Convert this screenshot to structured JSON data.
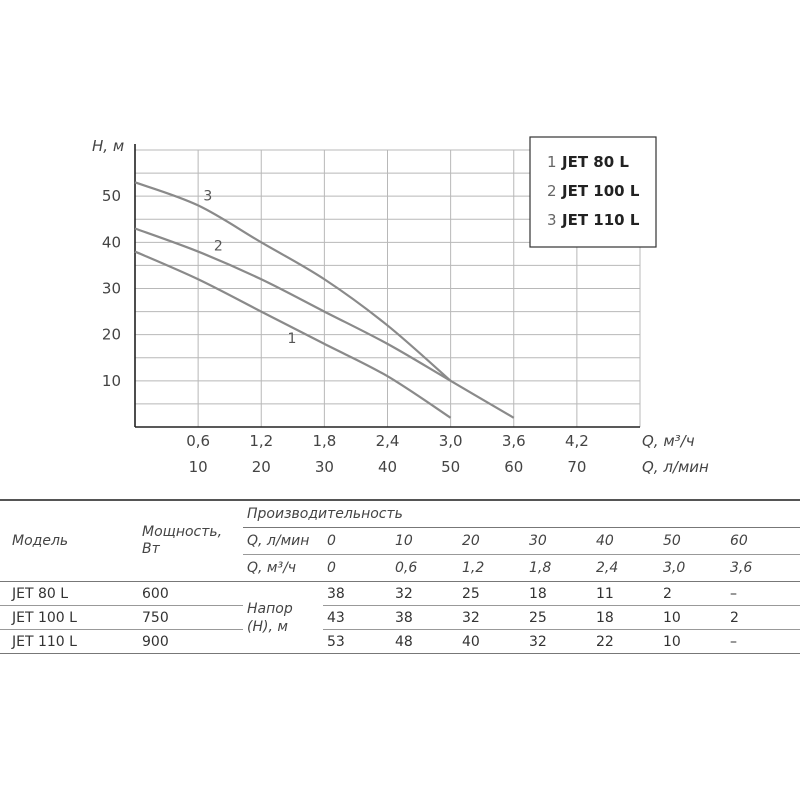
{
  "chart_data": {
    "type": "line",
    "xlabel": "Q, м³/ч",
    "xlabel2": "Q, л/мин",
    "ylabel": "H, м",
    "x_ticks_m3h": [
      "0,6",
      "1,2",
      "1,8",
      "2,4",
      "3,0",
      "3,6",
      "4,2"
    ],
    "x_ticks_lmin": [
      "10",
      "20",
      "30",
      "40",
      "50",
      "60",
      "70"
    ],
    "y_ticks": [
      "10",
      "20",
      "30",
      "40",
      "50"
    ],
    "xlim": [
      0,
      4.8
    ],
    "ylim": [
      0,
      60
    ],
    "grid": true,
    "legend_position": "top-right",
    "legend": [
      {
        "num": "1",
        "name": "JET 80 L"
      },
      {
        "num": "2",
        "name": "JET 100 L"
      },
      {
        "num": "3",
        "name": "JET 110 L"
      }
    ],
    "series": [
      {
        "name": "1",
        "x": [
          0,
          0.6,
          1.2,
          1.8,
          2.4,
          3.0
        ],
        "y": [
          38,
          32,
          25,
          18,
          11,
          2
        ],
        "color": "#8a8a8a"
      },
      {
        "name": "2",
        "x": [
          0,
          0.6,
          1.2,
          1.8,
          2.4,
          3.0,
          3.6
        ],
        "y": [
          43,
          38,
          32,
          25,
          18,
          10,
          2
        ],
        "color": "#8a8a8a"
      },
      {
        "name": "3",
        "x": [
          0,
          0.6,
          1.2,
          1.8,
          2.4,
          3.0
        ],
        "y": [
          53,
          48,
          40,
          32,
          22,
          10
        ],
        "color": "#8a8a8a"
      }
    ]
  },
  "table": {
    "model_header": "Модель",
    "power_header": "Мощность, Вт",
    "productivity_header": "Производительность",
    "q_lmin_label": "Q, л/мин",
    "q_m3h_label": "Q, м³/ч",
    "q_lmin_values": [
      "0",
      "10",
      "20",
      "30",
      "40",
      "50",
      "60"
    ],
    "q_m3h_values": [
      "0",
      "0,6",
      "1,2",
      "1,8",
      "2,4",
      "3,0",
      "3,6"
    ],
    "head_label": "Напор (Н), м",
    "rows": [
      {
        "model": "JET 80 L",
        "power": "600",
        "values": [
          "38",
          "32",
          "25",
          "18",
          "11",
          "2",
          "–"
        ]
      },
      {
        "model": "JET 100 L",
        "power": "750",
        "values": [
          "43",
          "38",
          "32",
          "25",
          "18",
          "10",
          "2"
        ]
      },
      {
        "model": "JET 110 L",
        "power": "900",
        "values": [
          "53",
          "48",
          "40",
          "32",
          "22",
          "10",
          "–"
        ]
      }
    ]
  }
}
